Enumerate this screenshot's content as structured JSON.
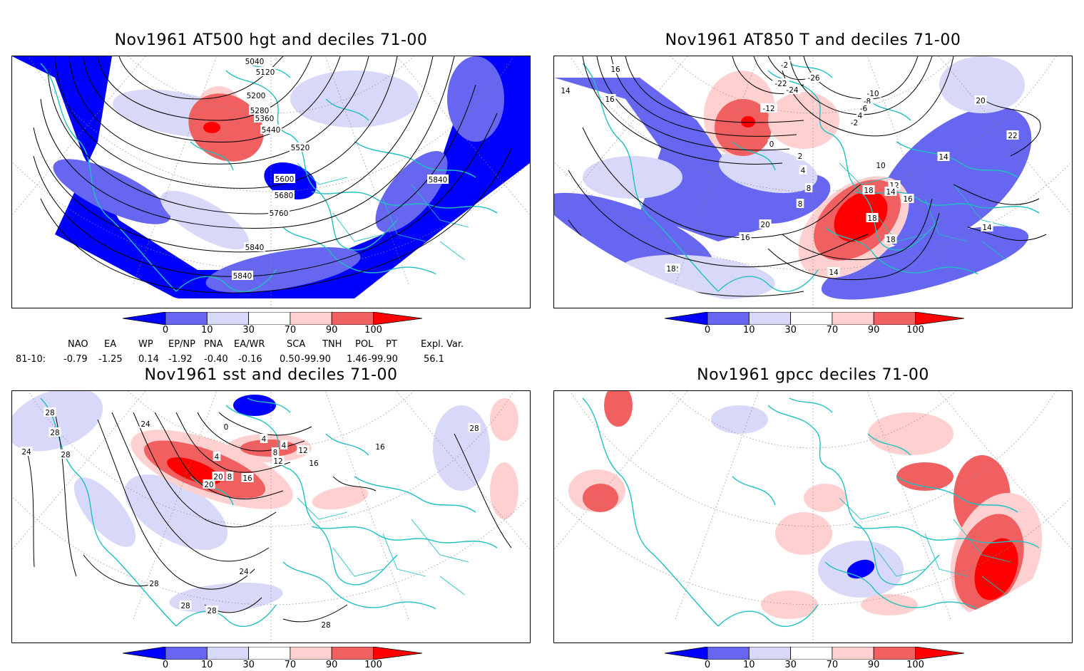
{
  "panels": [
    {
      "title": "Nov1961 AT500 hgt and deciles 71-00"
    },
    {
      "title": "Nov1961 AT850 T and deciles 71-00"
    },
    {
      "title": "Nov1961 sst and deciles 71-00"
    },
    {
      "title": "Nov1961 gpcc deciles 71-00"
    }
  ],
  "colorbar": {
    "labels": [
      "0",
      "10",
      "30",
      "70",
      "90",
      "100"
    ],
    "colors": [
      "#0000ff",
      "#6666f0",
      "#d8d8f8",
      "#ffffff",
      "#ffd0d0",
      "#f06060",
      "#ff0000"
    ]
  },
  "contour_labels": {
    "hgt": [
      "5040",
      "5120",
      "5200",
      "5280",
      "5360",
      "5440",
      "5520",
      "5600",
      "5680",
      "5760",
      "5840",
      "5840",
      "5840"
    ],
    "t850": [
      "16",
      "14",
      "16",
      "-2",
      "-26",
      "-24",
      "-22",
      "-12",
      "-10",
      "-8",
      "-6",
      "4",
      "-2",
      "0",
      "2",
      "4",
      "8",
      "8",
      "10",
      "12",
      "14",
      "16",
      "18",
      "20",
      "22",
      "14",
      "14",
      "18",
      "18",
      "20",
      "16",
      "12",
      "14",
      "18",
      "-16"
    ],
    "sst": [
      "28",
      "28",
      "24",
      "28",
      "24",
      "0",
      "4",
      "8",
      "4",
      "4",
      "8",
      "12",
      "16",
      "20",
      "12",
      "16",
      "20",
      "24",
      "28",
      "28",
      "28",
      "28",
      "28",
      "16"
    ]
  },
  "indices": {
    "headers": [
      "NAO",
      "EA",
      "WP",
      "EP/NP",
      "PNA",
      "EA/WR",
      "SCA",
      "TNH",
      "POL",
      "PT",
      "Expl. Var."
    ],
    "row_label": "81-10:",
    "values": [
      "-0.79",
      "-1.25",
      "0.14",
      "-1.92",
      "-0.40",
      "-0.16",
      "0.50",
      "-99.90",
      "1.46",
      "-99.90",
      "56.1"
    ]
  },
  "colors": {
    "coast": "#20c0c0",
    "contour": "#000000"
  }
}
